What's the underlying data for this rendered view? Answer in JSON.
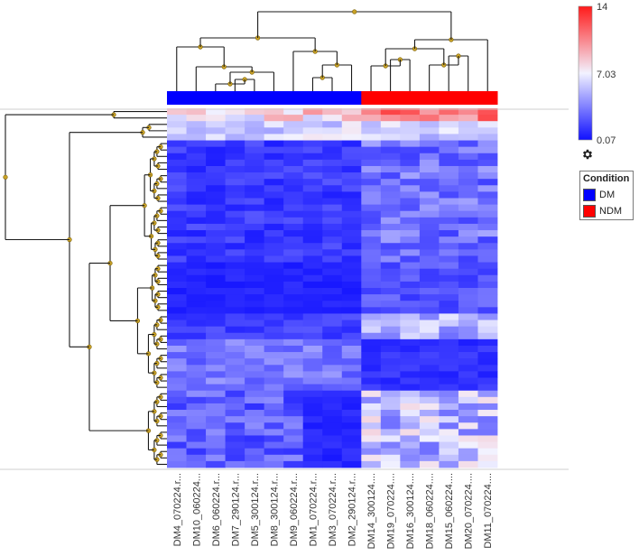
{
  "chart_data": {
    "type": "heatmap",
    "title": "",
    "columns": [
      "DM4_070224.r...",
      "DM10_060224...",
      "DM6_060224.r...",
      "DM7_290124.r...",
      "DM5_300124.r...",
      "DM8_300124.r...",
      "DM9_060224.r...",
      "DM1_070224.r...",
      "DM3_070224.r...",
      "DM2_290124.r...",
      "DM14_300124....",
      "DM19_070224....",
      "DM16_300124....",
      "DM18_060224....",
      "DM15_060224....",
      "DM20_070224....",
      "DM11_070224...."
    ],
    "column_conditions": [
      "DM",
      "DM",
      "DM",
      "DM",
      "DM",
      "DM",
      "DM",
      "DM",
      "DM",
      "DM",
      "NDM",
      "NDM",
      "NDM",
      "NDM",
      "NDM",
      "NDM",
      "NDM"
    ],
    "row_count": 56,
    "color_scale": {
      "min": 0.07,
      "mid": 7.03,
      "max": 14,
      "min_label": "0.07",
      "mid_label": "7.03",
      "max_label": "14",
      "low_color": "#1010ff",
      "mid_color": "#f2f2ff",
      "high_color": "#ff1a1a"
    },
    "legend": {
      "title": "Condition",
      "entries": [
        {
          "label": "DM",
          "color": "#0000ff"
        },
        {
          "label": "NDM",
          "color": "#ff0000"
        }
      ]
    },
    "column_dendrogram": true,
    "row_dendrogram": true,
    "settings_icon": "gear-icon"
  }
}
